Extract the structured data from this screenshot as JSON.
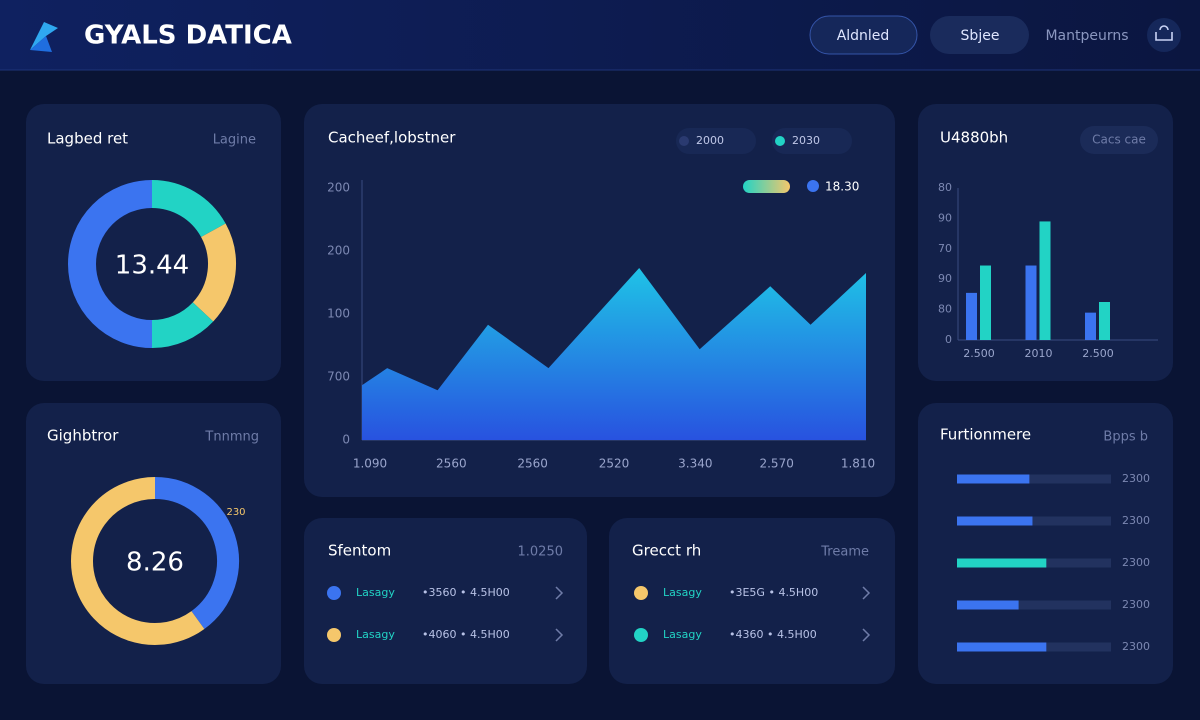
{
  "header": {
    "title": "GYALS DATICA",
    "buttons": [
      "Aldnled",
      "Sbjee"
    ],
    "menu": "Mantpeurns"
  },
  "donut_top": {
    "title": "Lagbed ret",
    "action": "Lagine",
    "center": "13.44",
    "segments": [
      {
        "value": 17,
        "color": "#22d3c5"
      },
      {
        "value": 20,
        "color": "#f5c76b"
      },
      {
        "value": 13,
        "color": "#22d3c5"
      },
      {
        "value": 50,
        "color": "#3b74f0"
      }
    ]
  },
  "donut_bottom": {
    "title": "Gighbtror",
    "action": "Tnnmng",
    "center": "8.26",
    "note": "230",
    "segments": [
      {
        "value": 40,
        "color": "#3b74f0"
      },
      {
        "value": 60,
        "color": "#f5c76b"
      }
    ]
  },
  "area_chart": {
    "title": "Cacheef,lobstner",
    "legend": [
      {
        "name": "2000",
        "color": "#2a3a70"
      },
      {
        "name": "2030",
        "color": "#22d3c5"
      }
    ],
    "badge": {
      "name": "18.30",
      "color": "#3b74f0"
    },
    "x": [
      0,
      5,
      15,
      25,
      37,
      55,
      67,
      81,
      89,
      100
    ],
    "values": [
      0.87,
      1.14,
      0.79,
      1.83,
      1.14,
      2.73,
      1.44,
      2.44,
      1.83,
      2.65
    ],
    "xlim": [
      0,
      100
    ],
    "ylim": [
      0,
      4
    ],
    "yticks": [
      0,
      {
        "value": 1,
        "label": "700"
      },
      {
        "value": 2,
        "label": "100"
      },
      {
        "value": 3,
        "label": "200"
      },
      {
        "value": 4,
        "label": "200"
      }
    ],
    "xlabels": [
      "1.090",
      "2560",
      "2560",
      "2520",
      "3.340",
      "2.570",
      "1.810"
    ]
  },
  "bar_chart": {
    "title": "U4880bh",
    "action": "Cacs cae",
    "categories": [
      "2.500",
      "2010",
      "2.500"
    ],
    "series": [
      {
        "color": "#3b74f0",
        "values": [
          31,
          49,
          18
        ]
      },
      {
        "color": "#22d3c5",
        "values": [
          49,
          78,
          25
        ]
      }
    ],
    "ylim": [
      0,
      100
    ],
    "yticks": [
      0,
      {
        "value": 20,
        "label": "80"
      },
      {
        "value": 40,
        "label": "90"
      },
      {
        "value": 60,
        "label": "70"
      },
      {
        "value": 80,
        "label": "90"
      },
      {
        "value": 100,
        "label": "80"
      }
    ]
  },
  "progress": {
    "title": "Furtionmere",
    "action": "Bpps b",
    "rows": [
      {
        "value": 47,
        "label": "2300",
        "color": "#3b74f0"
      },
      {
        "value": 49,
        "label": "2300",
        "color": "#3b74f0"
      },
      {
        "value": 58,
        "label": "2300",
        "color": "#22d3c5"
      },
      {
        "value": 40,
        "label": "2300",
        "color": "#3b74f0"
      },
      {
        "value": 58,
        "label": "2300",
        "color": "#3b74f0"
      }
    ]
  },
  "list_left": {
    "title": "Sfentom",
    "action": "1.0250",
    "rows": [
      {
        "color": "#3b74f0",
        "name": "Lasagy",
        "detail": "•3560 • 4.5H00"
      },
      {
        "color": "#f5c76b",
        "name": "Lasagy",
        "detail": "•4060 • 4.5H00"
      }
    ]
  },
  "list_right": {
    "title": "Grecct rh",
    "action": "Treame",
    "rows": [
      {
        "color": "#f5c76b",
        "name": "Lasagy",
        "detail": "•3E5G • 4.5H00"
      },
      {
        "color": "#22d3c5",
        "name": "Lasagy",
        "detail": "•4360 • 4.5H00"
      }
    ]
  }
}
